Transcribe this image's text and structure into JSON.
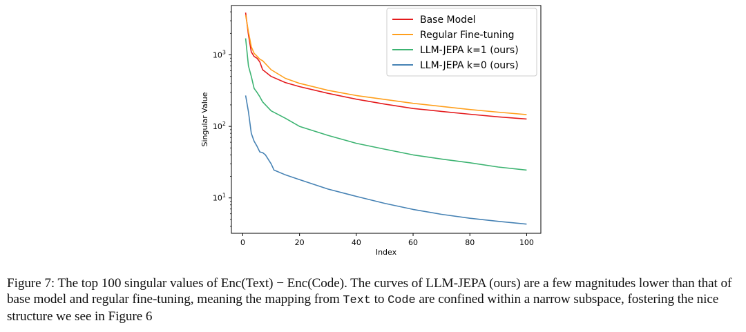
{
  "figure": {
    "chart_data": {
      "type": "line",
      "xlabel": "Index",
      "ylabel": "Singular Value",
      "x_range": [
        1,
        100
      ],
      "xlim": [
        -4,
        105
      ],
      "ylim": [
        3.2,
        4900
      ],
      "y_scale": "log",
      "x_ticks": [
        0,
        20,
        40,
        60,
        80,
        100
      ],
      "x_tick_labels": [
        "0",
        "20",
        "40",
        "60",
        "80",
        "100"
      ],
      "y_ticks": [
        10,
        100,
        1000
      ],
      "y_tick_labels": [
        "10^1",
        "10^2",
        "10^3"
      ],
      "legend_position": "top-right",
      "grid": false,
      "series": [
        {
          "name": "Base Model",
          "color": "#e41a1c",
          "points": [
            [
              1,
              3900
            ],
            [
              2,
              1900
            ],
            [
              3,
              1100
            ],
            [
              4,
              950
            ],
            [
              5,
              900
            ],
            [
              6,
              800
            ],
            [
              7,
              620
            ],
            [
              10,
              500
            ],
            [
              15,
              410
            ],
            [
              20,
              360
            ],
            [
              30,
              290
            ],
            [
              40,
              240
            ],
            [
              50,
              205
            ],
            [
              60,
              178
            ],
            [
              70,
              162
            ],
            [
              80,
              148
            ],
            [
              90,
              136
            ],
            [
              100,
              127
            ]
          ]
        },
        {
          "name": "Regular Fine-tuning",
          "color": "#ff9f1c",
          "points": [
            [
              1,
              3600
            ],
            [
              2,
              2100
            ],
            [
              3,
              1300
            ],
            [
              4,
              1050
            ],
            [
              5,
              960
            ],
            [
              6,
              870
            ],
            [
              7,
              830
            ],
            [
              10,
              620
            ],
            [
              15,
              470
            ],
            [
              20,
              400
            ],
            [
              30,
              320
            ],
            [
              40,
              270
            ],
            [
              50,
              238
            ],
            [
              60,
              210
            ],
            [
              70,
              190
            ],
            [
              80,
              172
            ],
            [
              90,
              158
            ],
            [
              100,
              146
            ]
          ]
        },
        {
          "name": "LLM-JEPA k=1 (ours)",
          "color": "#3cb371",
          "points": [
            [
              1,
              1700
            ],
            [
              2,
              700
            ],
            [
              3,
              500
            ],
            [
              4,
              340
            ],
            [
              5,
              300
            ],
            [
              6,
              260
            ],
            [
              7,
              220
            ],
            [
              10,
              165
            ],
            [
              15,
              130
            ],
            [
              20,
              100
            ],
            [
              30,
              75
            ],
            [
              40,
              58
            ],
            [
              50,
              48
            ],
            [
              60,
              40
            ],
            [
              70,
              35
            ],
            [
              80,
              31
            ],
            [
              90,
              27
            ],
            [
              100,
              24.5
            ]
          ]
        },
        {
          "name": "LLM-JEPA k=0 (ours)",
          "color": "#4682b4",
          "points": [
            [
              1,
              270
            ],
            [
              2,
              160
            ],
            [
              3,
              80
            ],
            [
              4,
              62
            ],
            [
              5,
              53
            ],
            [
              6,
              44
            ],
            [
              7,
              43
            ],
            [
              8,
              40
            ],
            [
              10,
              30
            ],
            [
              11,
              24.5
            ],
            [
              15,
              21
            ],
            [
              20,
              18
            ],
            [
              30,
              13.3
            ],
            [
              40,
              10.5
            ],
            [
              50,
              8.4
            ],
            [
              60,
              6.9
            ],
            [
              70,
              5.9
            ],
            [
              80,
              5.2
            ],
            [
              90,
              4.7
            ],
            [
              100,
              4.3
            ]
          ]
        }
      ]
    }
  },
  "caption": {
    "label": "Figure 7:",
    "text_1": "The top 100 singular values of",
    "expr_enc_text": "Enc(Text)",
    "minus": "−",
    "expr_enc_code": "Enc(Code)",
    "text_2": ". The curves of LLM-JEPA (ours) are a few magnitudes lower than that of base model and regular fine-tuning, meaning the mapping from",
    "code_text": "Text",
    "text_3": "to",
    "code_code": "Code",
    "text_4": "are confined within a narrow subspace, fostering the nice structure we see in Figure 6"
  }
}
